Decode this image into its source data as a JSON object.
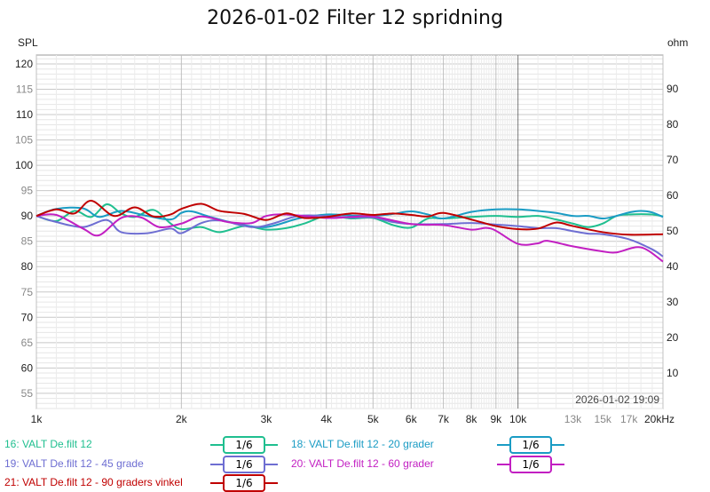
{
  "chart_data": {
    "type": "line",
    "title": "2026-01-02 Filter 12 spridning",
    "ylabel_left": "SPL",
    "ylabel_right": "ohm",
    "timestamp": "2026-01-02 19:09",
    "x_scale": "log",
    "xlim": [
      1000,
      20000
    ],
    "ylim": [
      52,
      121.75
    ],
    "ylim_right": [
      0,
      99.5
    ],
    "grid": true,
    "yticks": [
      55,
      60,
      65,
      70,
      75,
      80,
      85,
      90,
      95,
      100,
      105,
      110,
      115,
      120
    ],
    "yticks_right": [
      10,
      20,
      30,
      40,
      50,
      60,
      70,
      80,
      90
    ],
    "xticks": [
      {
        "v": 1000,
        "l": "1k"
      },
      {
        "v": 2000,
        "l": "2k"
      },
      {
        "v": 3000,
        "l": "3k"
      },
      {
        "v": 4000,
        "l": "4k"
      },
      {
        "v": 5000,
        "l": "5k"
      },
      {
        "v": 6000,
        "l": "6k"
      },
      {
        "v": 7000,
        "l": "7k"
      },
      {
        "v": 8000,
        "l": "8k"
      },
      {
        "v": 9000,
        "l": "9k"
      },
      {
        "v": 10000,
        "l": "10k"
      },
      {
        "v": 13000,
        "l": "13k",
        "minor": true
      },
      {
        "v": 15000,
        "l": "15k",
        "minor": true
      },
      {
        "v": 17000,
        "l": "17k",
        "minor": true
      },
      {
        "v": 20000,
        "l": "20kHz"
      }
    ],
    "legend_placement": "bottom",
    "series": [
      {
        "name": "16: VALT De.filt 12",
        "smoothing": "1/6",
        "color": "#1fbf8f",
        "points": [
          [
            1000,
            90
          ],
          [
            1100,
            89
          ],
          [
            1200,
            91
          ],
          [
            1300,
            89.8
          ],
          [
            1400,
            92.3
          ],
          [
            1500,
            90.5
          ],
          [
            1600,
            89.8
          ],
          [
            1750,
            91.2
          ],
          [
            1900,
            88.5
          ],
          [
            2000,
            87.4
          ],
          [
            2200,
            87.8
          ],
          [
            2400,
            86.8
          ],
          [
            2700,
            88
          ],
          [
            3000,
            87.3
          ],
          [
            3300,
            87.6
          ],
          [
            3600,
            88.5
          ],
          [
            4000,
            90
          ],
          [
            4500,
            89.5
          ],
          [
            5000,
            89.6
          ],
          [
            5500,
            88.2
          ],
          [
            6000,
            87.7
          ],
          [
            6500,
            89.5
          ],
          [
            7000,
            89.5
          ],
          [
            8000,
            89.8
          ],
          [
            9000,
            90
          ],
          [
            10000,
            89.8
          ],
          [
            11000,
            90
          ],
          [
            12000,
            89.3
          ],
          [
            13000,
            88.5
          ],
          [
            14000,
            87.8
          ],
          [
            15000,
            88.5
          ],
          [
            16000,
            90
          ],
          [
            17000,
            90.3
          ],
          [
            19000,
            90.3
          ],
          [
            20000,
            89.9
          ]
        ]
      },
      {
        "name": "18: VALT De.filt 12 - 20 grader",
        "smoothing": "1/6",
        "color": "#1a9cc4",
        "points": [
          [
            1000,
            90
          ],
          [
            1100,
            91.4
          ],
          [
            1250,
            91.5
          ],
          [
            1350,
            89.8
          ],
          [
            1500,
            91
          ],
          [
            1700,
            90
          ],
          [
            1900,
            89.3
          ],
          [
            2000,
            90.6
          ],
          [
            2100,
            90.9
          ],
          [
            2300,
            89.8
          ],
          [
            2600,
            88.5
          ],
          [
            3000,
            87.8
          ],
          [
            3500,
            89.5
          ],
          [
            4000,
            90.3
          ],
          [
            4500,
            90.1
          ],
          [
            5000,
            90
          ],
          [
            5500,
            90.4
          ],
          [
            6000,
            90.9
          ],
          [
            6500,
            90.3
          ],
          [
            7000,
            89.5
          ],
          [
            8000,
            90.8
          ],
          [
            9000,
            91.3
          ],
          [
            10000,
            91.3
          ],
          [
            11000,
            91
          ],
          [
            12000,
            90.6
          ],
          [
            13000,
            90
          ],
          [
            14000,
            90
          ],
          [
            15000,
            89.5
          ],
          [
            16000,
            90
          ],
          [
            17000,
            90.7
          ],
          [
            18000,
            91
          ],
          [
            19000,
            90.7
          ],
          [
            20000,
            89.8
          ]
        ]
      },
      {
        "name": "19: VALT De.filt 12 - 45 grade",
        "smoothing": "1/6",
        "color": "#6e6ed2",
        "points": [
          [
            1000,
            90
          ],
          [
            1100,
            88.8
          ],
          [
            1250,
            87.8
          ],
          [
            1400,
            89.2
          ],
          [
            1500,
            86.8
          ],
          [
            1700,
            86.6
          ],
          [
            1900,
            87.5
          ],
          [
            2000,
            86.6
          ],
          [
            2200,
            88.6
          ],
          [
            2400,
            89.1
          ],
          [
            2800,
            87.8
          ],
          [
            3100,
            88.5
          ],
          [
            3500,
            90
          ],
          [
            4000,
            90
          ],
          [
            4500,
            89.7
          ],
          [
            5000,
            89.7
          ],
          [
            5500,
            88.8
          ],
          [
            6000,
            88.4
          ],
          [
            7000,
            88.4
          ],
          [
            8000,
            88.6
          ],
          [
            9000,
            88.3
          ],
          [
            10000,
            88
          ],
          [
            11000,
            87.6
          ],
          [
            12000,
            87.6
          ],
          [
            13000,
            87
          ],
          [
            14000,
            86.5
          ],
          [
            15000,
            86.4
          ],
          [
            17000,
            85.4
          ],
          [
            19000,
            83.4
          ],
          [
            20000,
            82
          ]
        ]
      },
      {
        "name": "20: VALT De.filt 12 - 60 grader",
        "smoothing": "1/6",
        "color": "#c21fc2",
        "points": [
          [
            1000,
            90
          ],
          [
            1100,
            90.2
          ],
          [
            1250,
            87.5
          ],
          [
            1350,
            86.2
          ],
          [
            1500,
            89.6
          ],
          [
            1650,
            89.7
          ],
          [
            1800,
            87.8
          ],
          [
            2000,
            88.5
          ],
          [
            2200,
            89.9
          ],
          [
            2500,
            88.8
          ],
          [
            2800,
            88.6
          ],
          [
            3000,
            90
          ],
          [
            3300,
            90.3
          ],
          [
            4000,
            89.6
          ],
          [
            4500,
            89.8
          ],
          [
            5000,
            89.9
          ],
          [
            6000,
            88.4
          ],
          [
            7000,
            88.2
          ],
          [
            8000,
            87.3
          ],
          [
            8800,
            87.5
          ],
          [
            10000,
            84.5
          ],
          [
            11000,
            84.6
          ],
          [
            11500,
            85.1
          ],
          [
            13000,
            84
          ],
          [
            15000,
            83
          ],
          [
            16000,
            82.8
          ],
          [
            18000,
            83.8
          ],
          [
            20000,
            81
          ]
        ]
      },
      {
        "name": "21: VALT De.filt 12 - 90 graders vinkel",
        "smoothing": "1/6",
        "color": "#c00000",
        "points": [
          [
            1000,
            90
          ],
          [
            1100,
            91.3
          ],
          [
            1200,
            90.5
          ],
          [
            1300,
            93
          ],
          [
            1450,
            90
          ],
          [
            1600,
            91.7
          ],
          [
            1750,
            89.9
          ],
          [
            1900,
            90.3
          ],
          [
            2000,
            91.4
          ],
          [
            2200,
            92.4
          ],
          [
            2400,
            91
          ],
          [
            2700,
            90.4
          ],
          [
            3000,
            89.2
          ],
          [
            3300,
            90.5
          ],
          [
            3600,
            89.6
          ],
          [
            4000,
            89.8
          ],
          [
            4500,
            90.5
          ],
          [
            5000,
            90.2
          ],
          [
            5500,
            90.5
          ],
          [
            6000,
            90.2
          ],
          [
            6500,
            89.9
          ],
          [
            7000,
            90.6
          ],
          [
            8000,
            89.3
          ],
          [
            9000,
            88
          ],
          [
            10000,
            87.4
          ],
          [
            11000,
            87.5
          ],
          [
            12000,
            88.7
          ],
          [
            13000,
            88
          ],
          [
            15000,
            86.8
          ],
          [
            17000,
            86.3
          ],
          [
            20000,
            86.4
          ]
        ]
      }
    ]
  }
}
